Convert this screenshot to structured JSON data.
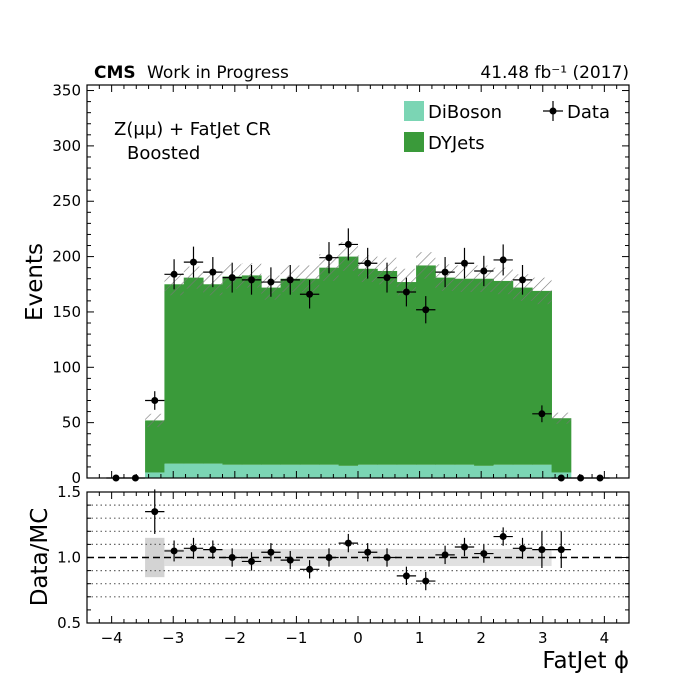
{
  "chart_data": [
    {
      "type": "bar",
      "stacked": true,
      "header_left_bold": "CMS",
      "header_left": "Work in Progress",
      "header_right": "41.48 fb⁻¹ (2017)",
      "region_line1": "Z(μμ) + FatJet CR",
      "region_line2": "Boosted",
      "ylabel": "Events",
      "ylim": [
        0,
        355
      ],
      "yticks": [
        "0",
        "50",
        "100",
        "150",
        "200",
        "250",
        "300",
        "350"
      ],
      "bin_edges": [
        -4.4,
        -4.086,
        -3.771,
        -3.457,
        -3.143,
        -2.829,
        -2.514,
        -2.2,
        -1.886,
        -1.571,
        -1.257,
        -0.943,
        -0.629,
        -0.314,
        0.0,
        0.314,
        0.629,
        0.943,
        1.257,
        1.571,
        1.886,
        2.2,
        2.514,
        2.829,
        3.143,
        3.457,
        3.771,
        4.086,
        4.4
      ],
      "series": [
        {
          "name": "DiBoson",
          "color": "#7bd5b4",
          "values": [
            0,
            0,
            0,
            5,
            13,
            13,
            13,
            12,
            12,
            12,
            12,
            12,
            12,
            11,
            12,
            12,
            12,
            12,
            12,
            12,
            11,
            12,
            12,
            12,
            5,
            0,
            0,
            0
          ]
        },
        {
          "name": "DYJets",
          "color": "#3a9a3a",
          "values": [
            0,
            0,
            0,
            47,
            162,
            168,
            162,
            170,
            171,
            160,
            168,
            168,
            178,
            189,
            177,
            175,
            165,
            180,
            169,
            168,
            169,
            166,
            160,
            157,
            49,
            0,
            0,
            0
          ]
        }
      ],
      "mc_unc_half": [
        0,
        0,
        0,
        6,
        10,
        10,
        10,
        11,
        11,
        11,
        12,
        12,
        12,
        13,
        12,
        12,
        12,
        12,
        12,
        12,
        12,
        12,
        12,
        12,
        5,
        0,
        0,
        0
      ],
      "data": {
        "name": "Data",
        "x": [
          -3.929,
          -3.614,
          -3.3,
          -2.986,
          -2.671,
          -2.357,
          -2.043,
          -1.729,
          -1.414,
          -1.1,
          -0.786,
          -0.471,
          -0.157,
          0.157,
          0.471,
          0.786,
          1.1,
          1.414,
          1.729,
          2.043,
          2.357,
          2.671,
          2.986,
          3.3,
          3.614,
          3.929
        ],
        "y": [
          0,
          0,
          70,
          184,
          195,
          186,
          181,
          179,
          177,
          179,
          166,
          199,
          211,
          194,
          181,
          168,
          152,
          186,
          194,
          187,
          197,
          179,
          58,
          0,
          0,
          0
        ],
        "yerr": [
          0,
          0,
          8.4,
          13.6,
          14,
          13.6,
          13.5,
          13.4,
          13.3,
          13.4,
          12.9,
          14.1,
          14.5,
          13.9,
          13.5,
          13,
          12.3,
          13.6,
          13.9,
          13.7,
          14,
          13.4,
          7.6,
          0,
          0,
          0
        ]
      },
      "legend": [
        "DiBoson",
        "DYJets",
        "Data"
      ],
      "legend_position": "top-right"
    },
    {
      "type": "scatter",
      "ylabel": "Data/MC",
      "xlabel": "FatJet ϕ",
      "xlim": [
        -4.4,
        4.4
      ],
      "ylim": [
        0.5,
        1.5
      ],
      "yticks": [
        "0.5",
        "1.0",
        "1.5"
      ],
      "xticks": [
        "−4",
        "−3",
        "−2",
        "−1",
        "0",
        "1",
        "2",
        "3",
        "4"
      ],
      "xtick_values": [
        -4,
        -3,
        -2,
        -1,
        0,
        1,
        2,
        3,
        4
      ],
      "ref_lines_dotted": [
        0.7,
        0.8,
        0.9,
        1.1,
        1.2,
        1.3,
        1.4
      ],
      "ref_line_dashed": 1.0,
      "unc_band_x": [
        -3.457,
        -3.143,
        3.143
      ],
      "unc_band_half": [
        0.15,
        0.065,
        0.065
      ],
      "x": [
        -3.3,
        -2.986,
        -2.671,
        -2.357,
        -2.043,
        -1.729,
        -1.414,
        -1.1,
        -0.786,
        -0.471,
        -0.157,
        0.157,
        0.471,
        0.786,
        1.1,
        1.414,
        1.729,
        2.043,
        2.357,
        2.671,
        2.986,
        3.3
      ],
      "y": [
        1.35,
        1.05,
        1.07,
        1.06,
        1.0,
        0.97,
        1.04,
        0.98,
        0.91,
        1.0,
        1.11,
        1.04,
        1.0,
        0.86,
        0.82,
        1.02,
        1.08,
        1.03,
        1.16,
        1.07,
        1.06,
        1.06
      ],
      "yerr": [
        0.17,
        0.08,
        0.08,
        0.07,
        0.07,
        0.07,
        0.07,
        0.07,
        0.07,
        0.07,
        0.07,
        0.07,
        0.07,
        0.07,
        0.07,
        0.07,
        0.07,
        0.07,
        0.07,
        0.08,
        0.14,
        0.14
      ]
    }
  ]
}
